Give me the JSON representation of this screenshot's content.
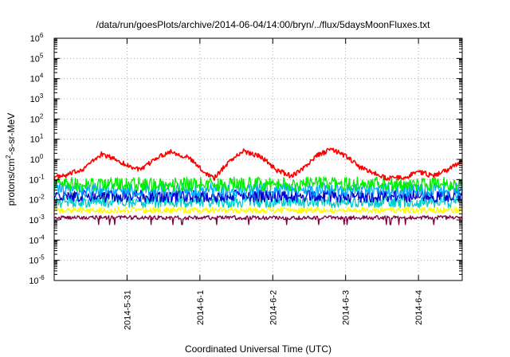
{
  "chart_data": {
    "type": "line",
    "title": "/data/run/goesPlots/archive/2014-06-04/14:00/bryn/../flux/5daysMoonFluxes.txt",
    "xlabel": "Coordinated Universal Time (UTC)",
    "ylabel": {
      "base": "protons/cm",
      "sup": "2",
      "rest": "-s-sr-MeV"
    },
    "x_ticks": [
      "2014-5-31",
      "2014-6-1",
      "2014-6-2",
      "2014-6-3",
      "2014-6-4"
    ],
    "xlim_days": [
      -1.0,
      4.6
    ],
    "y_scale": "log",
    "ylim": [
      1e-06,
      1000000
    ],
    "y_tick_exponents": [
      -6,
      -5,
      -4,
      -3,
      -2,
      -1,
      0,
      1,
      2,
      3,
      4,
      5,
      6
    ],
    "grid": true,
    "series": [
      {
        "color": "#ff0000",
        "x": [
          -1.0,
          -0.85,
          -0.6,
          -0.35,
          -0.15,
          0.0,
          0.2,
          0.4,
          0.6,
          0.85,
          1.05,
          1.2,
          1.4,
          1.6,
          1.85,
          2.05,
          2.25,
          2.4,
          2.6,
          2.8,
          3.0,
          3.2,
          3.4,
          3.55,
          3.8,
          4.0,
          4.2,
          4.4,
          4.6
        ],
        "y": [
          0.13,
          0.15,
          0.35,
          1.8,
          1.0,
          0.5,
          0.3,
          1.2,
          2.5,
          1.2,
          0.25,
          0.12,
          0.8,
          2.6,
          1.3,
          0.3,
          0.15,
          0.3,
          1.5,
          3.2,
          1.5,
          0.4,
          0.2,
          0.12,
          0.12,
          0.25,
          0.15,
          0.3,
          0.9
        ],
        "noise": 0.12
      },
      {
        "color": "#00ee00",
        "level": 0.06,
        "noise": 0.35
      },
      {
        "color": "#00aaff",
        "level": 0.03,
        "noise": 0.35
      },
      {
        "color": "#0000cc",
        "level": 0.015,
        "noise": 0.3
      },
      {
        "color": "#00cccc",
        "level": 0.008,
        "noise": 0.3
      },
      {
        "color": "#ffff00",
        "level": 0.003,
        "noise": 0.15
      },
      {
        "color": "#800040",
        "level": 0.0013,
        "noise": 0.1
      }
    ]
  }
}
